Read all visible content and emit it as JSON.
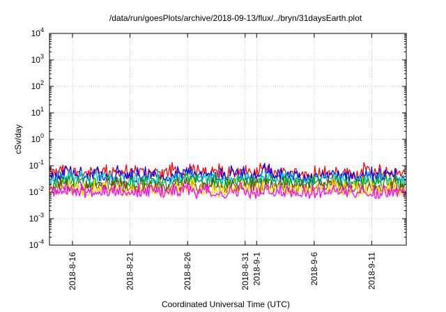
{
  "chart_data": {
    "type": "line",
    "title": "/data/run/goesPlots/archive/2018-09-13/flux/../bryn/31daysEarth.plot",
    "xlabel": "Coordinated Universal Time (UTC)",
    "ylabel": "cSv/day",
    "yscale": "log",
    "ylim": [
      0.0001,
      10000
    ],
    "xlim": [
      "2018-08-14",
      "2018-09-14"
    ],
    "grid": true,
    "y_ticks": [
      {
        "base": "10",
        "exp": "-4"
      },
      {
        "base": "10",
        "exp": "-3"
      },
      {
        "base": "10",
        "exp": "-2"
      },
      {
        "base": "10",
        "exp": "-1"
      },
      {
        "base": "10",
        "exp": "0"
      },
      {
        "base": "10",
        "exp": "1"
      },
      {
        "base": "10",
        "exp": "2"
      },
      {
        "base": "10",
        "exp": "3"
      },
      {
        "base": "10",
        "exp": "4"
      }
    ],
    "x_ticks": [
      {
        "label": "2018-8-16",
        "date": "2018-08-16"
      },
      {
        "label": "2018-8-21",
        "date": "2018-08-21"
      },
      {
        "label": "2018-8-26",
        "date": "2018-08-26"
      },
      {
        "label": "2018-8-31",
        "date": "2018-08-31"
      },
      {
        "label": "2018-9-1",
        "date": "2018-09-01"
      },
      {
        "label": "2018-9-6",
        "date": "2018-09-06"
      },
      {
        "label": "2018-9-11",
        "date": "2018-09-11"
      }
    ],
    "series": [
      {
        "color": "#ff0000",
        "values": [
          0.055,
          0.07,
          0.06,
          0.05,
          0.065,
          0.055,
          0.06,
          0.05,
          0.058,
          0.06,
          0.052,
          0.06,
          0.075,
          0.055,
          0.06,
          0.052,
          0.06,
          0.065,
          0.055,
          0.07,
          0.06,
          0.055,
          0.058,
          0.05,
          0.06,
          0.065,
          0.055,
          0.05,
          0.06,
          0.052,
          0.058,
          0.055
        ]
      },
      {
        "color": "#0000ff",
        "values": [
          0.04,
          0.05,
          0.045,
          0.038,
          0.048,
          0.04,
          0.045,
          0.038,
          0.042,
          0.045,
          0.038,
          0.045,
          0.06,
          0.04,
          0.045,
          0.038,
          0.045,
          0.048,
          0.04,
          0.055,
          0.045,
          0.04,
          0.042,
          0.038,
          0.045,
          0.05,
          0.04,
          0.038,
          0.045,
          0.038,
          0.042,
          0.04
        ]
      },
      {
        "color": "#00c8c8",
        "values": [
          0.03,
          0.035,
          0.032,
          0.028,
          0.034,
          0.03,
          0.032,
          0.027,
          0.03,
          0.032,
          0.028,
          0.032,
          0.04,
          0.03,
          0.032,
          0.028,
          0.032,
          0.034,
          0.03,
          0.038,
          0.032,
          0.03,
          0.03,
          0.028,
          0.032,
          0.035,
          0.03,
          0.028,
          0.032,
          0.028,
          0.03,
          0.03
        ]
      },
      {
        "color": "#00a000",
        "values": [
          0.022,
          0.026,
          0.024,
          0.02,
          0.025,
          0.022,
          0.024,
          0.02,
          0.022,
          0.024,
          0.02,
          0.024,
          0.03,
          0.022,
          0.024,
          0.02,
          0.024,
          0.025,
          0.022,
          0.028,
          0.024,
          0.022,
          0.022,
          0.02,
          0.024,
          0.026,
          0.022,
          0.02,
          0.024,
          0.02,
          0.022,
          0.022
        ]
      },
      {
        "color": "#8b4513",
        "values": [
          0.016,
          0.018,
          0.017,
          0.015,
          0.018,
          0.016,
          0.017,
          0.015,
          0.016,
          0.017,
          0.015,
          0.017,
          0.02,
          0.016,
          0.017,
          0.015,
          0.017,
          0.018,
          0.016,
          0.019,
          0.017,
          0.016,
          0.016,
          0.015,
          0.017,
          0.018,
          0.016,
          0.015,
          0.017,
          0.015,
          0.016,
          0.016
        ]
      },
      {
        "color": "#ffd700",
        "values": [
          0.012,
          0.014,
          0.013,
          0.011,
          0.014,
          0.012,
          0.013,
          0.011,
          0.012,
          0.013,
          0.011,
          0.013,
          0.016,
          0.012,
          0.013,
          0.011,
          0.013,
          0.014,
          0.012,
          0.015,
          0.013,
          0.012,
          0.012,
          0.011,
          0.013,
          0.014,
          0.012,
          0.011,
          0.013,
          0.011,
          0.012,
          0.012
        ]
      },
      {
        "color": "#ff00ff",
        "values": [
          0.01,
          0.013,
          0.011,
          0.009,
          0.012,
          0.01,
          0.011,
          0.009,
          0.01,
          0.012,
          0.009,
          0.011,
          0.014,
          0.01,
          0.011,
          0.009,
          0.011,
          0.012,
          0.01,
          0.013,
          0.011,
          0.01,
          0.01,
          0.009,
          0.011,
          0.012,
          0.01,
          0.009,
          0.011,
          0.009,
          0.01,
          0.01
        ]
      }
    ]
  }
}
